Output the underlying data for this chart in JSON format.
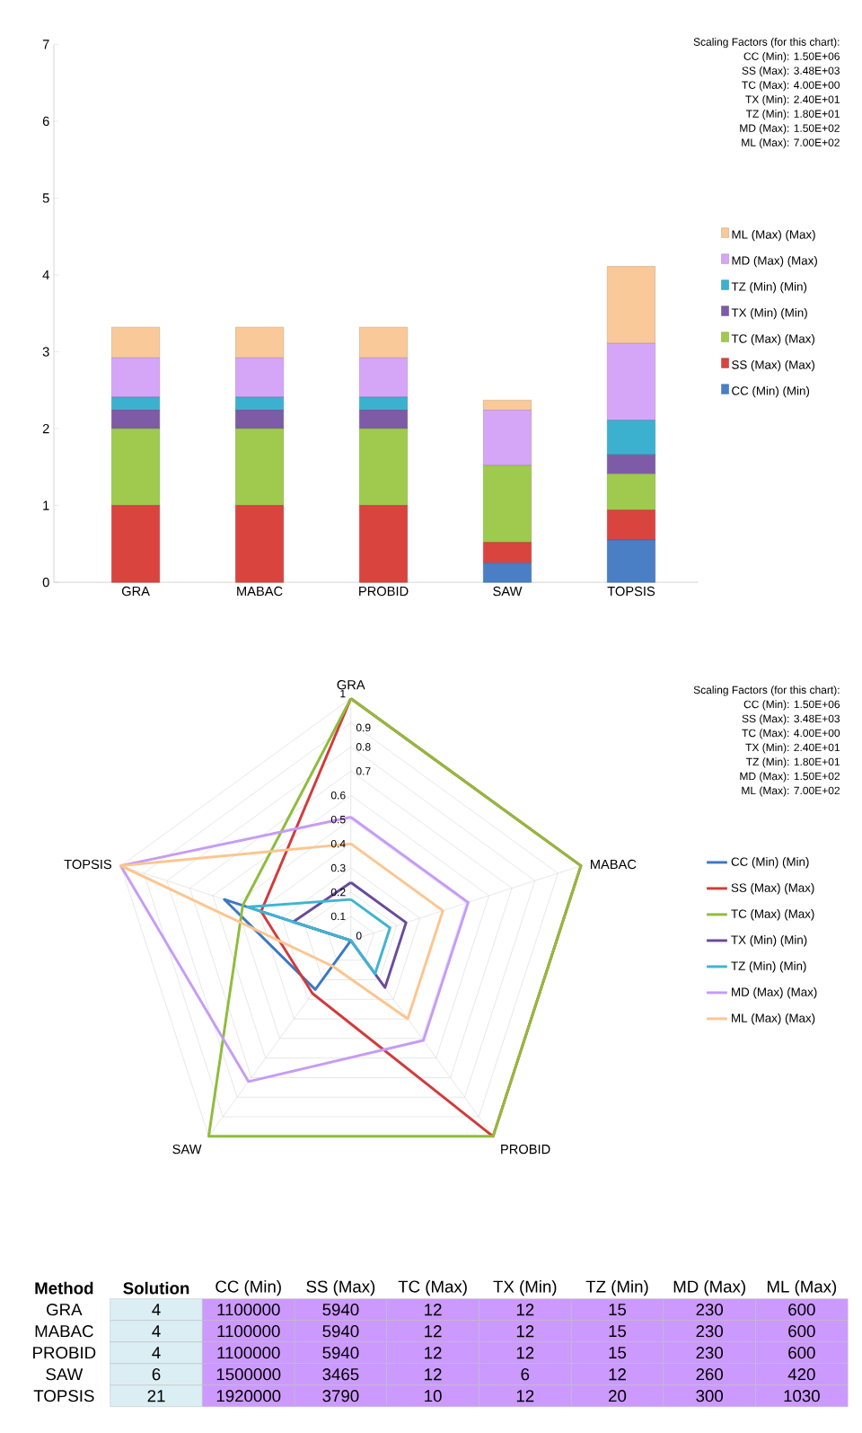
{
  "chart_data": [
    {
      "type": "bar",
      "stacked": true,
      "categories": [
        "GRA",
        "MABAC",
        "PROBID",
        "SAW",
        "TOPSIS"
      ],
      "ylim": [
        0,
        7
      ],
      "yticks": [
        0,
        1,
        2,
        3,
        4,
        5,
        6,
        7
      ],
      "legend": "right",
      "annotations": [
        "Scaling Factors (for this chart):",
        "CC (Min): 1.50E+06",
        "SS (Max): 3.48E+03",
        "TC (Max): 4.00E+00",
        "TX (Min): 2.40E+01",
        "TZ (Min): 1.80E+01",
        "MD (Max): 1.50E+02",
        "ML (Max): 7.00E+02"
      ],
      "series": [
        {
          "name": "CC (Min) (Min)",
          "color": "#4a7fc6",
          "values": [
            0,
            0,
            0,
            0.25,
            0.55
          ]
        },
        {
          "name": "SS (Max) (Max)",
          "color": "#d9443f",
          "values": [
            1,
            1,
            1,
            0.27,
            0.39
          ]
        },
        {
          "name": "TC (Max) (Max)",
          "color": "#9fca4e",
          "values": [
            1,
            1,
            1,
            1,
            0.47
          ]
        },
        {
          "name": "TX (Min) (Min)",
          "color": "#7d5ba6",
          "values": [
            0.24,
            0.24,
            0.24,
            0,
            0.25
          ]
        },
        {
          "name": "TZ (Min) (Min)",
          "color": "#3cb1cf",
          "values": [
            0.17,
            0.17,
            0.17,
            0,
            0.45
          ]
        },
        {
          "name": "MD (Max) (Max)",
          "color": "#d5a6f7",
          "values": [
            0.51,
            0.51,
            0.51,
            0.72,
            1
          ]
        },
        {
          "name": "ML (Max) (Max)",
          "color": "#f9c99a",
          "values": [
            0.4,
            0.4,
            0.4,
            0.13,
            1
          ]
        }
      ]
    },
    {
      "type": "radar",
      "categories": [
        "GRA",
        "MABAC",
        "PROBID",
        "SAW",
        "TOPSIS"
      ],
      "ylim": [
        0,
        1
      ],
      "yticks": [
        0,
        0.1,
        0.2,
        0.3,
        0.4,
        0.5,
        0.6,
        0.7,
        0.8,
        0.9,
        1
      ],
      "grid": true,
      "legend": "right",
      "annotations": [
        "Scaling Factors (for this chart):",
        "CC (Min): 1.50E+06",
        "SS (Max): 3.48E+03",
        "TC (Max): 4.00E+00",
        "TX (Min): 2.40E+01",
        "TZ (Min): 1.80E+01",
        "MD (Max): 1.50E+02",
        "ML (Max): 7.00E+02"
      ],
      "series": [
        {
          "name": "CC (Min) (Min)",
          "color": "#3c78c3",
          "values": [
            0,
            0,
            0,
            0.25,
            0.55
          ]
        },
        {
          "name": "SS (Max) (Max)",
          "color": "#d13b3b",
          "values": [
            1,
            1,
            1,
            0.27,
            0.39
          ]
        },
        {
          "name": "TC (Max) (Max)",
          "color": "#8fbc3c",
          "values": [
            1,
            1,
            1,
            1,
            0.47
          ]
        },
        {
          "name": "TX (Min) (Min)",
          "color": "#6a4a9c",
          "values": [
            0.24,
            0.24,
            0.24,
            0,
            0.25
          ]
        },
        {
          "name": "TZ (Min) (Min)",
          "color": "#3fb4d2",
          "values": [
            0.17,
            0.17,
            0.17,
            0,
            0.45
          ]
        },
        {
          "name": "MD (Max) (Max)",
          "color": "#c69cf5",
          "values": [
            0.51,
            0.51,
            0.51,
            0.72,
            1
          ]
        },
        {
          "name": "ML (Max) (Max)",
          "color": "#fcc58f",
          "values": [
            0.4,
            0.4,
            0.4,
            0.13,
            1
          ]
        }
      ]
    },
    {
      "type": "heatmap",
      "data_labels": true,
      "ylabel": "Method",
      "categories": [
        "Solution",
        "CC (Min)",
        "SS (Max)",
        "TC (Max)",
        "TX (Min)",
        "TZ (Min)",
        "MD (Max)",
        "ML (Max)"
      ],
      "y_categories": [
        "GRA",
        "MABAC",
        "PROBID",
        "SAW",
        "TOPSIS"
      ],
      "colors": [
        "#dbeef4",
        "#cc99ff",
        "#cc99ff",
        "#cc99ff",
        "#cc99ff",
        "#cc99ff",
        "#cc99ff",
        "#cc99ff"
      ],
      "cells": [
        [
          4,
          1100000,
          5940,
          12,
          12,
          15,
          230,
          600
        ],
        [
          4,
          1100000,
          5940,
          12,
          12,
          15,
          230,
          600
        ],
        [
          4,
          1100000,
          5940,
          12,
          12,
          15,
          230,
          600
        ],
        [
          6,
          1500000,
          3465,
          12,
          6,
          12,
          260,
          420
        ],
        [
          21,
          1920000,
          3790,
          10,
          12,
          20,
          300,
          1030
        ]
      ]
    }
  ]
}
